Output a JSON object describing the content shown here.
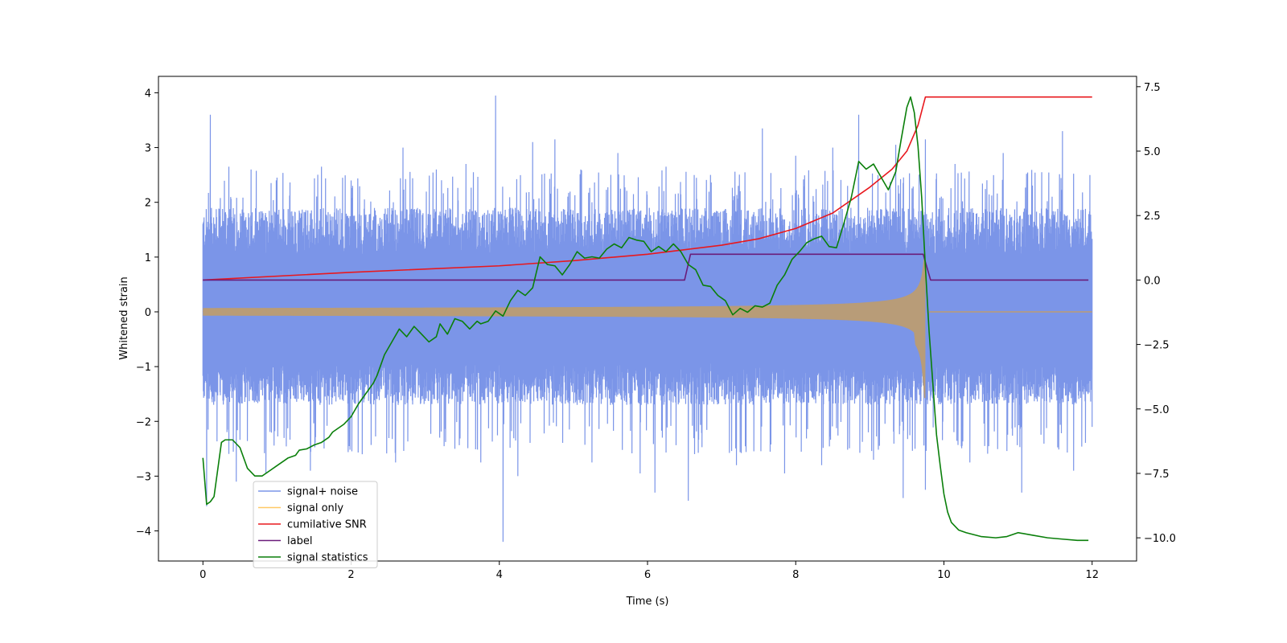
{
  "chart_data": {
    "type": "line",
    "title": "",
    "xlabel": "Time (s)",
    "ylabel": "Whitened strain",
    "xlim": [
      -0.6,
      12.6
    ],
    "ylim": [
      -4.55,
      4.3
    ],
    "y2lim": [
      -10.9,
      7.9
    ],
    "xticks": [
      0,
      2,
      4,
      6,
      8,
      10,
      12
    ],
    "yticks": [
      -4,
      -3,
      -2,
      -1,
      0,
      1,
      2,
      3,
      4
    ],
    "y2ticks": [
      -10.0,
      -7.5,
      -5.0,
      -2.5,
      0.0,
      2.5,
      5.0,
      7.5
    ],
    "y2tick_labels": [
      "−10.0",
      "−7.5",
      "−5.0",
      "−2.5",
      "0.0",
      "2.5",
      "5.0",
      "7.5"
    ],
    "legend_position": "lower-left",
    "noise": {
      "t_start": 0,
      "t_end": 12,
      "upper_typical": 1.9,
      "lower_typical": -1.7,
      "spike_peaks": [
        [
          0.1,
          3.6
        ],
        [
          0.35,
          2.65
        ],
        [
          0.65,
          2.6
        ],
        [
          1.0,
          2.45
        ],
        [
          1.6,
          2.65
        ],
        [
          2.0,
          2.4
        ],
        [
          2.7,
          3.0
        ],
        [
          3.15,
          2.6
        ],
        [
          3.55,
          2.7
        ],
        [
          3.95,
          3.95
        ],
        [
          4.45,
          3.1
        ],
        [
          4.75,
          3.15
        ],
        [
          5.1,
          2.6
        ],
        [
          5.6,
          2.9
        ],
        [
          6.25,
          2.65
        ],
        [
          6.85,
          2.5
        ],
        [
          7.55,
          3.35
        ],
        [
          8.0,
          2.85
        ],
        [
          8.5,
          3.0
        ],
        [
          8.85,
          3.6
        ],
        [
          9.35,
          3.05
        ],
        [
          9.75,
          3.15
        ],
        [
          10.15,
          2.7
        ],
        [
          10.8,
          2.9
        ],
        [
          11.6,
          3.3
        ]
      ],
      "dip_peaks": [
        [
          0.05,
          -3.55
        ],
        [
          0.45,
          -3.1
        ],
        [
          0.85,
          -2.95
        ],
        [
          1.45,
          -2.9
        ],
        [
          2.15,
          -2.6
        ],
        [
          2.6,
          -2.75
        ],
        [
          3.4,
          -2.5
        ],
        [
          3.75,
          -2.75
        ],
        [
          4.05,
          -4.2
        ],
        [
          4.25,
          -3.0
        ],
        [
          5.25,
          -2.75
        ],
        [
          5.9,
          -2.95
        ],
        [
          6.1,
          -3.3
        ],
        [
          6.55,
          -3.45
        ],
        [
          7.2,
          -2.8
        ],
        [
          7.85,
          -2.95
        ],
        [
          8.35,
          -2.8
        ],
        [
          9.05,
          -2.7
        ],
        [
          9.45,
          -3.4
        ],
        [
          9.75,
          -3.25
        ],
        [
          10.35,
          -2.75
        ],
        [
          11.05,
          -3.3
        ],
        [
          11.75,
          -2.9
        ]
      ]
    },
    "signal_only": {
      "t_start": 0,
      "t_merger": 9.75,
      "t_end": 12,
      "amplitude_start": 0.07,
      "amplitude_merger": 1.05,
      "amplitude_min_merger": -1.6,
      "post_merger_value": 0.0
    },
    "cumulative_snr": {
      "x": [
        0,
        2,
        4,
        5,
        6,
        7,
        7.5,
        8,
        8.5,
        9,
        9.3,
        9.5,
        9.65,
        9.75,
        12
      ],
      "y2": [
        0.0,
        0.3,
        0.55,
        0.75,
        1.0,
        1.35,
        1.6,
        2.0,
        2.6,
        3.6,
        4.3,
        5.0,
        6.0,
        7.1,
        7.1
      ]
    },
    "label": {
      "x": [
        0,
        6.5,
        6.58,
        9.72,
        9.82,
        11.95
      ],
      "y2": [
        0.0,
        0.0,
        1.0,
        1.0,
        0.0,
        0.0
      ]
    },
    "signal_statistics": {
      "x": [
        0.0,
        0.05,
        0.1,
        0.15,
        0.25,
        0.3,
        0.4,
        0.5,
        0.6,
        0.7,
        0.8,
        0.9,
        1.0,
        1.1,
        1.15,
        1.25,
        1.3,
        1.4,
        1.5,
        1.6,
        1.7,
        1.75,
        1.9,
        2.0,
        2.1,
        2.2,
        2.3,
        2.35,
        2.45,
        2.55,
        2.65,
        2.75,
        2.85,
        2.95,
        3.05,
        3.15,
        3.2,
        3.3,
        3.4,
        3.5,
        3.6,
        3.7,
        3.75,
        3.85,
        3.95,
        4.05,
        4.15,
        4.25,
        4.35,
        4.45,
        4.55,
        4.65,
        4.75,
        4.85,
        4.95,
        5.05,
        5.15,
        5.25,
        5.35,
        5.45,
        5.55,
        5.65,
        5.75,
        5.85,
        5.95,
        6.05,
        6.15,
        6.25,
        6.35,
        6.45,
        6.55,
        6.65,
        6.75,
        6.85,
        6.95,
        7.05,
        7.15,
        7.25,
        7.35,
        7.45,
        7.55,
        7.65,
        7.75,
        7.85,
        7.95,
        8.05,
        8.15,
        8.25,
        8.35,
        8.45,
        8.55,
        8.65,
        8.75,
        8.85,
        8.95,
        9.05,
        9.15,
        9.25,
        9.35,
        9.42,
        9.5,
        9.55,
        9.6,
        9.65,
        9.7,
        9.75,
        9.8,
        9.85,
        9.9,
        9.95,
        10.0,
        10.05,
        10.1,
        10.2,
        10.3,
        10.5,
        10.7,
        10.85,
        11.0,
        11.2,
        11.4,
        11.6,
        11.8,
        11.95
      ],
      "y2": [
        -6.9,
        -8.7,
        -8.6,
        -8.4,
        -6.3,
        -6.2,
        -6.2,
        -6.5,
        -7.3,
        -7.6,
        -7.6,
        -7.4,
        -7.2,
        -7.0,
        -6.9,
        -6.8,
        -6.6,
        -6.55,
        -6.4,
        -6.3,
        -6.1,
        -5.9,
        -5.6,
        -5.3,
        -4.8,
        -4.4,
        -4.0,
        -3.7,
        -2.9,
        -2.4,
        -1.9,
        -2.2,
        -1.8,
        -2.1,
        -2.4,
        -2.2,
        -1.7,
        -2.1,
        -1.5,
        -1.6,
        -1.9,
        -1.6,
        -1.7,
        -1.6,
        -1.2,
        -1.4,
        -0.8,
        -0.4,
        -0.6,
        -0.3,
        0.9,
        0.6,
        0.55,
        0.2,
        0.6,
        1.1,
        0.85,
        0.9,
        0.85,
        1.2,
        1.4,
        1.25,
        1.65,
        1.55,
        1.5,
        1.1,
        1.3,
        1.1,
        1.4,
        1.1,
        0.6,
        0.4,
        -0.2,
        -0.25,
        -0.6,
        -0.8,
        -1.35,
        -1.1,
        -1.25,
        -1.0,
        -1.05,
        -0.9,
        -0.2,
        0.2,
        0.8,
        1.1,
        1.45,
        1.6,
        1.7,
        1.3,
        1.25,
        2.2,
        3.2,
        4.6,
        4.3,
        4.5,
        4.0,
        3.5,
        4.2,
        5.4,
        6.7,
        7.1,
        6.5,
        5.2,
        3.2,
        0.5,
        -2.0,
        -4.0,
        -6.0,
        -7.2,
        -8.3,
        -9.0,
        -9.4,
        -9.7,
        -9.8,
        -9.95,
        -10.0,
        -9.95,
        -9.8,
        -9.9,
        -10.0,
        -10.05,
        -10.1,
        -10.1
      ]
    },
    "legend": [
      {
        "label": "signal+ noise",
        "color": "#7b95e8"
      },
      {
        "label": "signal only",
        "color": "#ffc966"
      },
      {
        "label": "cumilative SNR",
        "color": "#e8181e"
      },
      {
        "label": "label",
        "color": "#6a1c7a"
      },
      {
        "label": "signal statistics",
        "color": "#0a7f0a"
      }
    ],
    "colors": {
      "noise": "#7b95e8",
      "signal_fill": "#bc9c72",
      "signal_line": "#ffc966",
      "snr": "#e8181e",
      "label": "#6a1c7a",
      "stats": "#0a7f0a"
    }
  }
}
